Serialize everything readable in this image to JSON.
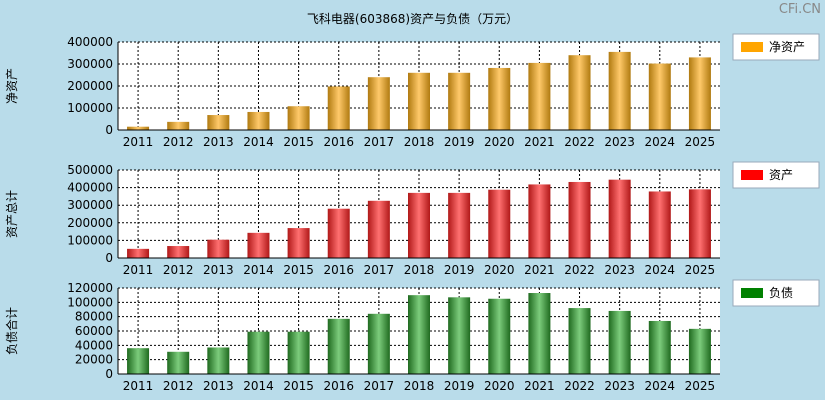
{
  "title": "飞科电器(603868)资产与负债（万元）",
  "watermark": "CFi.CN",
  "chart_data": [
    {
      "type": "bar",
      "ylabel": "净资产",
      "legend": "净资产",
      "legend_color": "#ffa500",
      "ylim": [
        0,
        400000
      ],
      "yticks": [
        "0",
        "100000",
        "200000",
        "300000",
        "400000"
      ],
      "categories": [
        "2011",
        "2012",
        "2013",
        "2014",
        "2015",
        "2016",
        "2017",
        "2018",
        "2019",
        "2020",
        "2021",
        "2022",
        "2023",
        "2024",
        "2025"
      ],
      "values": [
        15000,
        37000,
        68000,
        82000,
        108000,
        198000,
        240000,
        260000,
        260000,
        282000,
        305000,
        340000,
        355000,
        302000,
        330000
      ],
      "color_dark": "#b07a10",
      "color_light": "#ffc96a",
      "grid": true,
      "legend_position": "right"
    },
    {
      "type": "bar",
      "ylabel": "资产总计",
      "legend": "资产",
      "legend_color": "#ff0000",
      "ylim": [
        0,
        500000
      ],
      "yticks": [
        "0",
        "100000",
        "200000",
        "300000",
        "400000",
        "500000"
      ],
      "categories": [
        "2011",
        "2012",
        "2013",
        "2014",
        "2015",
        "2016",
        "2017",
        "2018",
        "2019",
        "2020",
        "2021",
        "2022",
        "2023",
        "2024",
        "2025"
      ],
      "values": [
        52000,
        68000,
        104000,
        143000,
        170000,
        280000,
        325000,
        370000,
        370000,
        388000,
        418000,
        432000,
        445000,
        378000,
        390000
      ],
      "color_dark": "#b01818",
      "color_light": "#ff7070",
      "grid": true,
      "legend_position": "right"
    },
    {
      "type": "bar",
      "ylabel": "负债合计",
      "legend": "负债",
      "legend_color": "#008000",
      "ylim": [
        0,
        120000
      ],
      "yticks": [
        "0",
        "20000",
        "40000",
        "60000",
        "80000",
        "100000",
        "120000"
      ],
      "categories": [
        "2011",
        "2012",
        "2013",
        "2014",
        "2015",
        "2016",
        "2017",
        "2018",
        "2019",
        "2020",
        "2021",
        "2022",
        "2023",
        "2024",
        "2025"
      ],
      "values": [
        36000,
        31000,
        37000,
        59000,
        59000,
        77000,
        84000,
        110000,
        107000,
        105000,
        113000,
        92000,
        88000,
        74000,
        63000
      ],
      "color_dark": "#1f6a1f",
      "color_light": "#7ccc7c",
      "grid": true,
      "legend_position": "right"
    }
  ]
}
